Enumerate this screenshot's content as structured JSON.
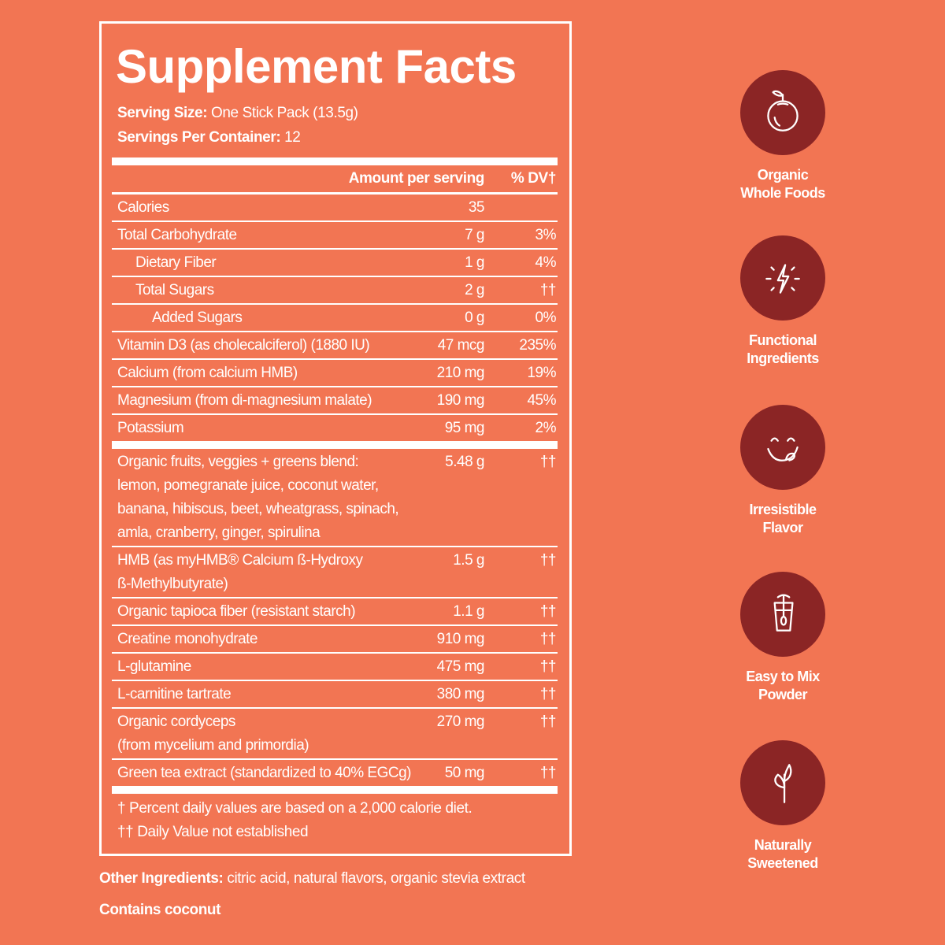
{
  "title": "Supplement Facts",
  "serving_size_label": "Serving Size:",
  "serving_size": "One Stick Pack (13.5g)",
  "servings_label": "Servings Per Container:",
  "servings": "12",
  "header": {
    "amount": "Amount per serving",
    "dv": "% DV†"
  },
  "rows_a": [
    {
      "name": "Calories",
      "amount": "35",
      "dv": "",
      "indent": 0
    },
    {
      "name": "Total Carbohydrate",
      "amount": "7 g",
      "dv": "3%",
      "indent": 0
    },
    {
      "name": "Dietary Fiber",
      "amount": "1 g",
      "dv": "4%",
      "indent": 1
    },
    {
      "name": "Total Sugars",
      "amount": "2 g",
      "dv": "††",
      "indent": 1
    },
    {
      "name": "Added Sugars",
      "amount": "0 g",
      "dv": "0%",
      "indent": 2
    },
    {
      "name": "Vitamin D3 (as cholecalciferol) (1880 IU)",
      "amount": "47 mcg",
      "dv": "235%",
      "indent": 0
    },
    {
      "name": "Calcium (from calcium HMB)",
      "amount": "210 mg",
      "dv": "19%",
      "indent": 0
    },
    {
      "name": "Magnesium (from di-magnesium malate)",
      "amount": "190 mg",
      "dv": "45%",
      "indent": 0
    },
    {
      "name": "Potassium",
      "amount": "95 mg",
      "dv": "2%",
      "indent": 0
    }
  ],
  "rows_b": [
    {
      "name": "Organic fruits, veggies + greens blend:\nlemon, pomegranate juice, coconut water,\nbanana, hibiscus, beet, wheatgrass, spinach,\namla, cranberry, ginger, spirulina",
      "amount": "5.48 g",
      "dv": "††"
    },
    {
      "name": "HMB (as myHMB® Calcium ß-Hydroxy\nß-Methylbutyrate)",
      "amount": "1.5 g",
      "dv": "††"
    },
    {
      "name": "Organic tapioca fiber (resistant starch)",
      "amount": "1.1 g",
      "dv": "††"
    },
    {
      "name": "Creatine monohydrate",
      "amount": "910 mg",
      "dv": "††"
    },
    {
      "name": "L-glutamine",
      "amount": "475 mg",
      "dv": "††"
    },
    {
      "name": "L-carnitine tartrate",
      "amount": "380 mg",
      "dv": "††"
    },
    {
      "name": "Organic cordyceps\n(from mycelium and primordia)",
      "amount": "270 mg",
      "dv": "††"
    },
    {
      "name": "Green tea extract (standardized to 40% EGCg)",
      "amount": "50 mg",
      "dv": "††"
    }
  ],
  "footnotes": [
    "† Percent daily values are based on a 2,000 calorie diet.",
    "†† Daily Value not established"
  ],
  "other_label": "Other Ingredients:",
  "other": "citric acid, natural flavors, organic stevia extract",
  "contains": "Contains coconut",
  "features": [
    {
      "icon": "apple-icon",
      "label": "Organic\nWhole Foods"
    },
    {
      "icon": "lightning-icon",
      "label": "Functional\nIngredients"
    },
    {
      "icon": "smile-tongue-icon",
      "label": "Irresistible\nFlavor"
    },
    {
      "icon": "shaker-cup-icon",
      "label": "Easy to Mix\nPowder"
    },
    {
      "icon": "leaf-sprout-icon",
      "label": "Naturally\nSweetened"
    }
  ],
  "colors": {
    "background": "#F27553",
    "icon_circle": "#8B2525",
    "text": "#FFFFFF"
  }
}
